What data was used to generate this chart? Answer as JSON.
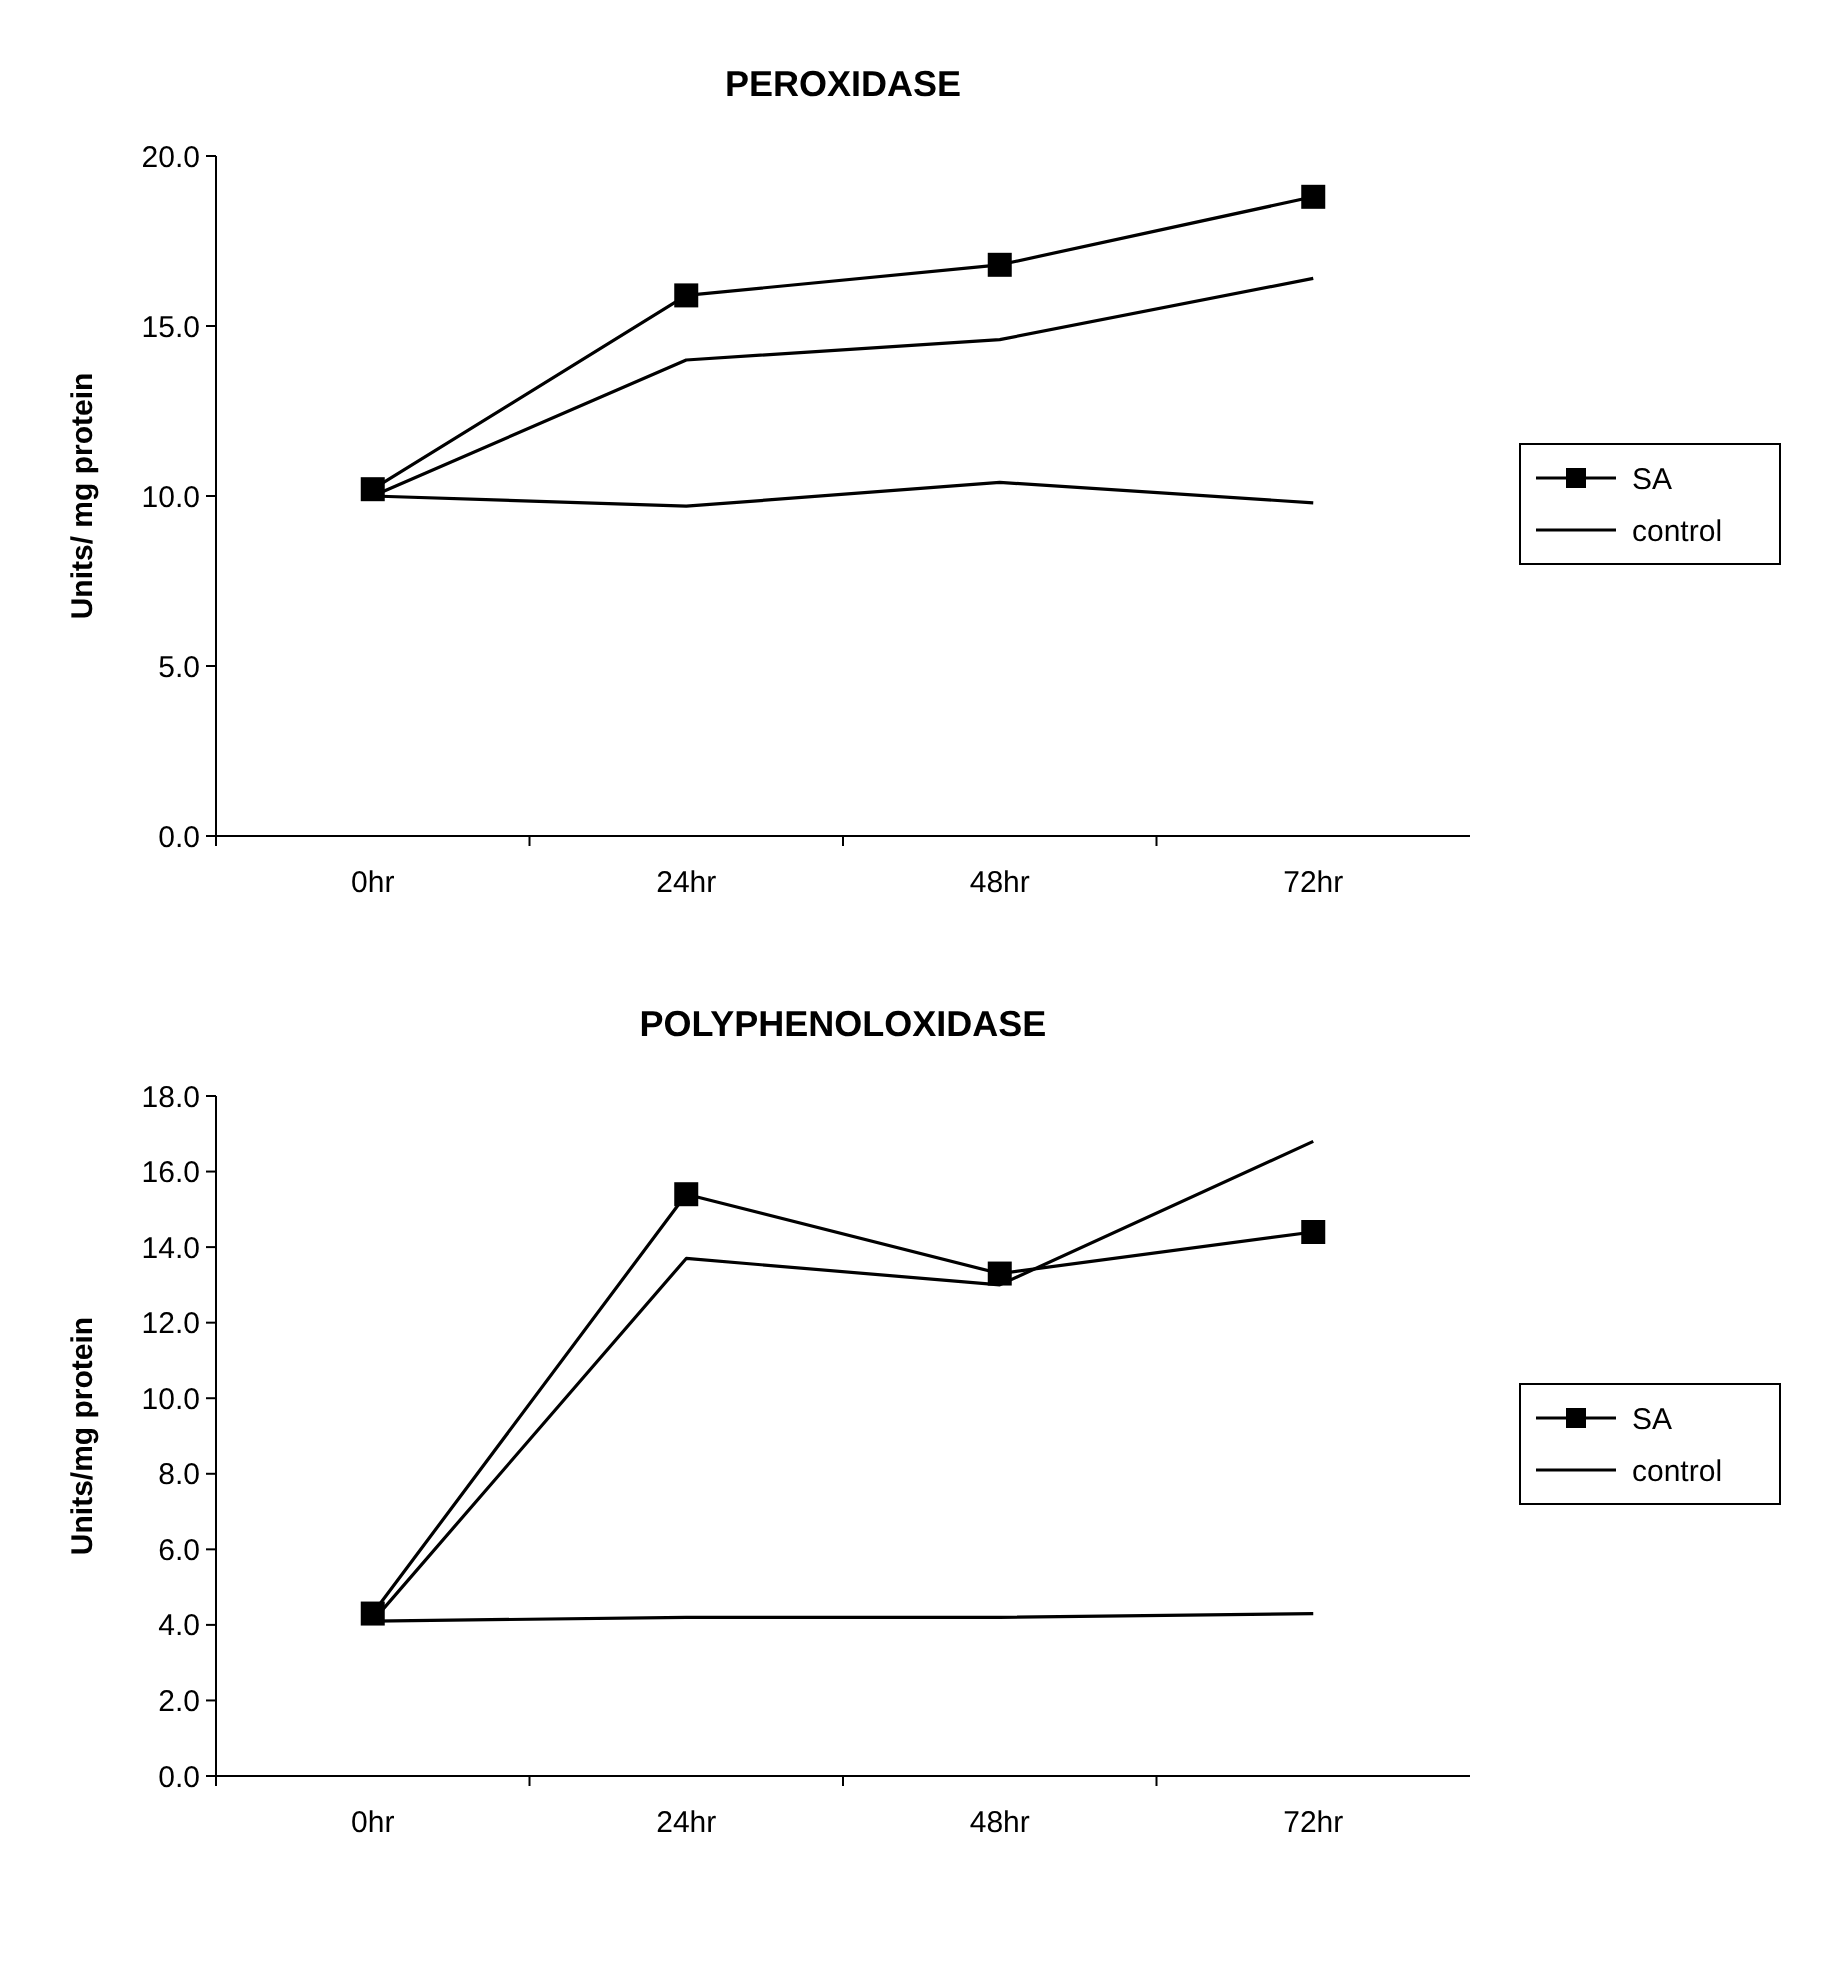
{
  "chart_data": [
    {
      "type": "line",
      "title": "PEROXIDASE",
      "ylabel": "Units/ mg protein",
      "categories": [
        "0hr",
        "24hr",
        "48hr",
        "72hr"
      ],
      "ylim": [
        0,
        20
      ],
      "yticks": [
        {
          "value": 0,
          "label": "0.0"
        },
        {
          "value": 5,
          "label": "5.0"
        },
        {
          "value": 10,
          "label": "10.0"
        },
        {
          "value": 15,
          "label": "15.0"
        },
        {
          "value": 20,
          "label": "20.0"
        }
      ],
      "legend": "right",
      "grid": false,
      "series": [
        {
          "name": "SA",
          "color": "#000000",
          "marker": "square",
          "values": [
            10.2,
            15.9,
            16.8,
            18.8
          ]
        },
        {
          "color": "#000000",
          "marker": "none",
          "values": [
            10.0,
            14.0,
            14.6,
            16.4
          ]
        },
        {
          "name": "control",
          "color": "#000000",
          "marker": "none",
          "values": [
            10.0,
            9.7,
            10.4,
            9.8
          ]
        }
      ]
    },
    {
      "type": "line",
      "title": "POLYPHENOLOXIDASE",
      "ylabel": "Units/mg protein",
      "categories": [
        "0hr",
        "24hr",
        "48hr",
        "72hr"
      ],
      "ylim": [
        0,
        18
      ],
      "yticks": [
        {
          "value": 0,
          "label": "0.0"
        },
        {
          "value": 2,
          "label": "2.0"
        },
        {
          "value": 4,
          "label": "4.0"
        },
        {
          "value": 6,
          "label": "6.0"
        },
        {
          "value": 8,
          "label": "8.0"
        },
        {
          "value": 10,
          "label": "10.0"
        },
        {
          "value": 12,
          "label": "12.0"
        },
        {
          "value": 14,
          "label": "14.0"
        },
        {
          "value": 16,
          "label": "16.0"
        },
        {
          "value": 18,
          "label": "18.0"
        }
      ],
      "legend": "right",
      "grid": false,
      "series": [
        {
          "name": "SA",
          "color": "#000000",
          "marker": "square",
          "values": [
            4.3,
            15.4,
            13.3,
            14.4
          ]
        },
        {
          "color": "#000000",
          "marker": "none",
          "values": [
            4.1,
            13.7,
            13.0,
            16.8
          ]
        },
        {
          "name": "control",
          "color": "#000000",
          "marker": "none",
          "values": [
            4.1,
            4.2,
            4.2,
            4.3
          ]
        }
      ]
    }
  ]
}
